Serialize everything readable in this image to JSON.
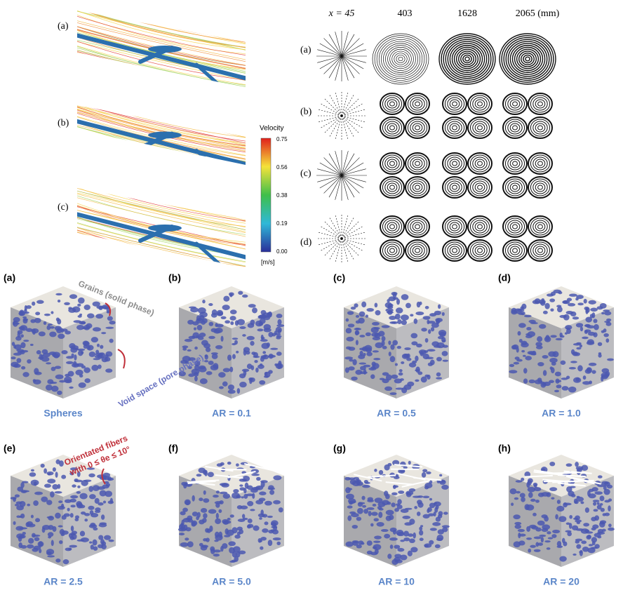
{
  "flow_panel": {
    "labels": [
      "(a)",
      "(b)",
      "(c)"
    ],
    "colorbar": {
      "title": "Velocity",
      "ticks": [
        "0.75",
        "0.56",
        "0.38",
        "0.19",
        "0.00"
      ],
      "unit": "[m/s]"
    }
  },
  "vortex_panel": {
    "columns": [
      "x = 45",
      "403",
      "1628",
      "2065 (mm)"
    ],
    "rows": [
      "(a)",
      "(b)",
      "(c)",
      "(d)"
    ]
  },
  "cubes": [
    {
      "label": "(a)",
      "caption": "Spheres"
    },
    {
      "label": "(b)",
      "caption": "AR = 0.1"
    },
    {
      "label": "(c)",
      "caption": "AR = 0.5"
    },
    {
      "label": "(d)",
      "caption": "AR = 1.0"
    },
    {
      "label": "(e)",
      "caption": "AR = 2.5"
    },
    {
      "label": "(f)",
      "caption": "AR = 5.0"
    },
    {
      "label": "(g)",
      "caption": "AR = 10"
    },
    {
      "label": "(h)",
      "caption": "AR = 20"
    }
  ],
  "annotations": {
    "grains": "Grains (solid phase)",
    "void": "Void space (pore phase)",
    "fibers_line1": "Orientated fibers",
    "fibers_line2": "with 0 ≤ θe ≤ 10°"
  }
}
